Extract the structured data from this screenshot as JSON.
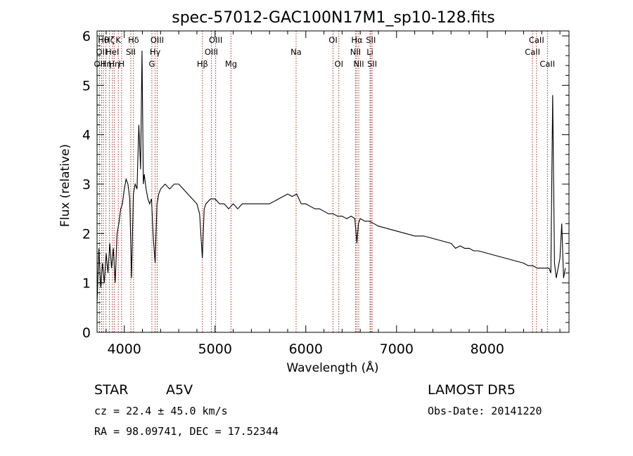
{
  "chart_data": {
    "type": "line",
    "title": "spec-57012-GAC100N17M1_sp10-128.fits",
    "xlabel": "Wavelength (Å)",
    "ylabel": "Flux (relative)",
    "xlim": [
      3700,
      8900
    ],
    "ylim": [
      0,
      6.1
    ],
    "x_ticks": [
      4000,
      5000,
      6000,
      7000,
      8000
    ],
    "y_ticks": [
      0,
      1,
      2,
      3,
      4,
      5,
      6
    ],
    "grid": false,
    "series": [
      {
        "color": "#000000",
        "x": [
          3700,
          3720,
          3740,
          3760,
          3780,
          3800,
          3820,
          3840,
          3860,
          3880,
          3900,
          3920,
          3940,
          3960,
          3980,
          4000,
          4020,
          4040,
          4060,
          4080,
          4100,
          4120,
          4140,
          4160,
          4180,
          4195,
          4210,
          4220,
          4240,
          4260,
          4280,
          4300,
          4320,
          4340,
          4360,
          4380,
          4400,
          4450,
          4500,
          4550,
          4600,
          4650,
          4700,
          4750,
          4800,
          4830,
          4860,
          4880,
          4900,
          4950,
          5000,
          5050,
          5100,
          5150,
          5200,
          5250,
          5300,
          5400,
          5500,
          5600,
          5700,
          5800,
          5850,
          5900,
          5950,
          6000,
          6050,
          6100,
          6150,
          6200,
          6250,
          6300,
          6350,
          6400,
          6450,
          6500,
          6540,
          6563,
          6580,
          6600,
          6650,
          6700,
          6750,
          6800,
          6900,
          7000,
          7100,
          7200,
          7300,
          7400,
          7500,
          7600,
          7650,
          7700,
          7750,
          7800,
          7850,
          7900,
          8000,
          8100,
          8200,
          8300,
          8400,
          8450,
          8500,
          8550,
          8600,
          8650,
          8680,
          8700,
          8720,
          8740,
          8760,
          8780,
          8800,
          8820,
          8840,
          8860
        ],
        "y": [
          0.6,
          1.7,
          0.9,
          1.4,
          1.0,
          1.6,
          1.2,
          1.8,
          1.3,
          1.7,
          1.0,
          2.0,
          2.2,
          2.5,
          2.6,
          2.9,
          3.1,
          3.0,
          2.7,
          1.1,
          2.8,
          3.0,
          2.9,
          4.2,
          3.3,
          5.7,
          3.0,
          3.2,
          2.9,
          2.7,
          2.6,
          2.7,
          1.9,
          1.4,
          2.6,
          2.8,
          2.9,
          3.0,
          2.9,
          3.0,
          3.0,
          2.9,
          2.8,
          2.7,
          2.6,
          2.4,
          1.5,
          2.5,
          2.6,
          2.7,
          2.7,
          2.6,
          2.6,
          2.5,
          2.6,
          2.5,
          2.6,
          2.6,
          2.6,
          2.6,
          2.7,
          2.8,
          2.75,
          2.8,
          2.6,
          2.6,
          2.55,
          2.5,
          2.5,
          2.45,
          2.4,
          2.4,
          2.35,
          2.35,
          2.3,
          2.35,
          2.3,
          1.8,
          2.2,
          2.3,
          2.25,
          2.25,
          2.2,
          2.15,
          2.1,
          2.05,
          2.0,
          1.95,
          1.95,
          1.9,
          1.85,
          1.8,
          1.7,
          1.75,
          1.7,
          1.7,
          1.65,
          1.65,
          1.6,
          1.55,
          1.5,
          1.45,
          1.4,
          1.35,
          1.35,
          1.3,
          1.3,
          1.3,
          1.3,
          1.2,
          4.8,
          1.4,
          1.1,
          1.3,
          1.5,
          2.2,
          1.1,
          1.3
        ]
      }
    ],
    "line_markers": [
      {
        "x": 3727,
        "label": "OII",
        "row": 2
      },
      {
        "x": 3750,
        "label": "OII",
        "row": 1
      },
      {
        "x": 3770,
        "label": "Hθ",
        "row": 0
      },
      {
        "x": 3798,
        "label": "Hη",
        "row": 2
      },
      {
        "x": 3835,
        "label": "Hζ",
        "row": 0
      },
      {
        "x": 3869,
        "label": "HeI",
        "row": 1
      },
      {
        "x": 3889,
        "label": "Hη",
        "row": 2
      },
      {
        "x": 3934,
        "label": "K",
        "row": 0
      },
      {
        "x": 3970,
        "label": "H",
        "row": 2
      },
      {
        "x": 4072,
        "label": "SII",
        "row": 1
      },
      {
        "x": 4102,
        "label": "Hδ",
        "row": 0
      },
      {
        "x": 4304,
        "label": "G",
        "row": 2
      },
      {
        "x": 4340,
        "label": "Hγ",
        "row": 1
      },
      {
        "x": 4363,
        "label": "OIII",
        "row": 0
      },
      {
        "x": 4861,
        "label": "Hβ",
        "row": 2
      },
      {
        "x": 4959,
        "label": "OIII",
        "row": 1
      },
      {
        "x": 5007,
        "label": "OIII",
        "row": 0
      },
      {
        "x": 5176,
        "label": "Mg",
        "row": 2
      },
      {
        "x": 5893,
        "label": "Na",
        "row": 1
      },
      {
        "x": 6300,
        "label": "OI",
        "row": 0
      },
      {
        "x": 6364,
        "label": "OI",
        "row": 2
      },
      {
        "x": 6548,
        "label": "NII",
        "row": 1
      },
      {
        "x": 6563,
        "label": "Hα",
        "row": 0
      },
      {
        "x": 6583,
        "label": "NII",
        "row": 2
      },
      {
        "x": 6707,
        "label": "Li",
        "row": 1
      },
      {
        "x": 6717,
        "label": "SII",
        "row": 0
      },
      {
        "x": 6731,
        "label": "SII",
        "row": 2
      },
      {
        "x": 8498,
        "label": "CaII",
        "row": 1
      },
      {
        "x": 8542,
        "label": "CaII",
        "row": 0
      },
      {
        "x": 8662,
        "label": "CaII",
        "row": 2
      }
    ]
  },
  "footer": {
    "object_class": "STAR",
    "subclass": "A5V",
    "survey": "LAMOST  DR5",
    "cz": "cz = 22.4 ± 45.0 km/s",
    "obs_date": "Obs-Date: 20141220",
    "coords": "RA =  98.09741, DEC =  17.52344"
  },
  "colors": {
    "line_marker": "#a0302a",
    "spectrum": "#000000"
  }
}
